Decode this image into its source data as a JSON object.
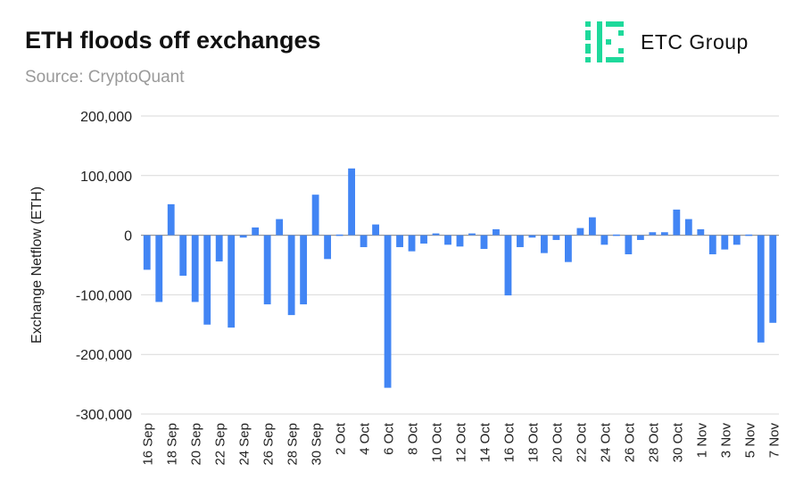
{
  "header": {
    "title": "ETH floods off exchanges",
    "subtitle": "Source: CryptoQuant"
  },
  "logo": {
    "text": "ETC Group",
    "icon": "etc-group-logo-icon",
    "color": "#1ed99b"
  },
  "chart_data": {
    "type": "bar",
    "ylabel": "Exchange Netflow (ETH)",
    "xlabel": "",
    "ylim": [
      -300000,
      200000
    ],
    "yticks": [
      200000,
      100000,
      0,
      -100000,
      -200000,
      -300000
    ],
    "ytick_labels": [
      "200,000",
      "100,000",
      "0",
      "-100,000",
      "-200,000",
      "-300,000"
    ],
    "grid": true,
    "legend": "none",
    "bar_color": "#4285f4",
    "categories": [
      "16 Sep",
      "17 Sep",
      "18 Sep",
      "19 Sep",
      "20 Sep",
      "21 Sep",
      "22 Sep",
      "23 Sep",
      "24 Sep",
      "25 Sep",
      "26 Sep",
      "27 Sep",
      "28 Sep",
      "29 Sep",
      "30 Sep",
      "1 Oct",
      "2 Oct",
      "3 Oct",
      "4 Oct",
      "5 Oct",
      "6 Oct",
      "7 Oct",
      "8 Oct",
      "9 Oct",
      "10 Oct",
      "11 Oct",
      "12 Oct",
      "13 Oct",
      "14 Oct",
      "15 Oct",
      "16 Oct",
      "17 Oct",
      "18 Oct",
      "19 Oct",
      "20 Oct",
      "21 Oct",
      "22 Oct",
      "23 Oct",
      "24 Oct",
      "25 Oct",
      "26 Oct",
      "27 Oct",
      "28 Oct",
      "29 Oct",
      "30 Oct",
      "31 Oct",
      "1 Nov",
      "2 Nov",
      "3 Nov",
      "4 Nov",
      "5 Nov",
      "6 Nov",
      "7 Nov"
    ],
    "tick_labels": [
      "16 Sep",
      "18 Sep",
      "20 Sep",
      "22 Sep",
      "24 Sep",
      "26 Sep",
      "28 Sep",
      "30 Sep",
      "2 Oct",
      "4 Oct",
      "6 Oct",
      "8 Oct",
      "10 Oct",
      "12 Oct",
      "14 Oct",
      "16 Oct",
      "18 Oct",
      "20 Oct",
      "22 Oct",
      "24 Oct",
      "26 Oct",
      "28 Oct",
      "30 Oct",
      "1 Nov",
      "3 Nov",
      "5 Nov",
      "7 Nov"
    ],
    "values": [
      -58000,
      -112000,
      52000,
      -68000,
      -112000,
      -150000,
      -44000,
      -155000,
      -4000,
      13000,
      -116000,
      27000,
      -134000,
      -116000,
      68000,
      -40000,
      1000,
      112000,
      -20000,
      18000,
      -256000,
      -20000,
      -27000,
      -14000,
      3000,
      -16000,
      -19000,
      3000,
      -23000,
      10000,
      -101000,
      -20000,
      -4000,
      -30000,
      -8000,
      -45000,
      12000,
      30000,
      -16000,
      1000,
      -32000,
      -8000,
      5000,
      5000,
      43000,
      27000,
      10000,
      -32000,
      -24000,
      -16000,
      1000,
      -180000,
      -147000
    ]
  }
}
